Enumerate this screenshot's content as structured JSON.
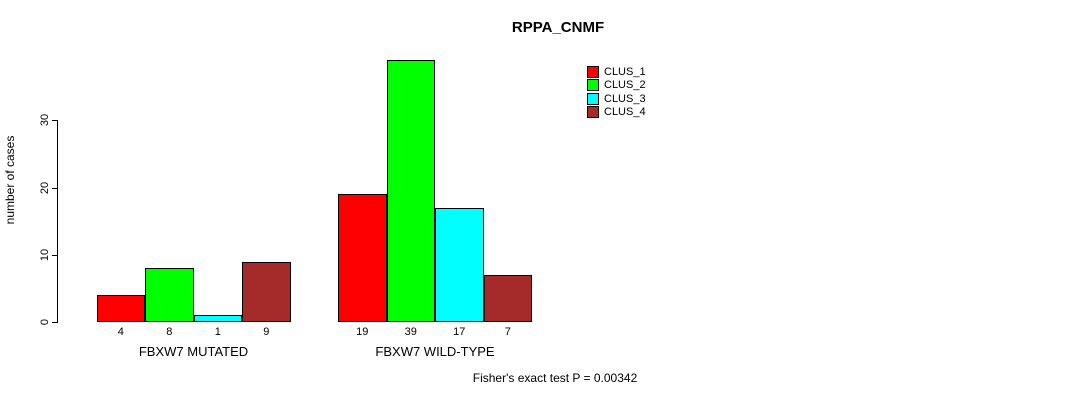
{
  "chart_data": {
    "type": "bar",
    "title": "RPPA_CNMF",
    "ylabel": "number of cases",
    "yticks": [
      0,
      10,
      20,
      30
    ],
    "ylim": [
      0,
      39
    ],
    "grid": false,
    "legend_position": "top-right",
    "categories": [
      "FBXW7 MUTATED",
      "FBXW7 WILD-TYPE"
    ],
    "series": [
      {
        "name": "CLUS_1",
        "color": "#ff0000",
        "values": [
          4,
          19
        ]
      },
      {
        "name": "CLUS_2",
        "color": "#00ff00",
        "values": [
          8,
          39
        ]
      },
      {
        "name": "CLUS_3",
        "color": "#00ffff",
        "values": [
          1,
          17
        ]
      },
      {
        "name": "CLUS_4",
        "color": "#a52a2a",
        "values": [
          9,
          7
        ]
      }
    ],
    "bar_value_labels": [
      [
        "4",
        "8",
        "1",
        "9"
      ],
      [
        "19",
        "39",
        "17",
        "7"
      ]
    ],
    "annotation": "Fisher's exact test P = 0.00342"
  },
  "colors": {
    "axis": "#000000",
    "text": "#000000",
    "background": "#ffffff"
  }
}
